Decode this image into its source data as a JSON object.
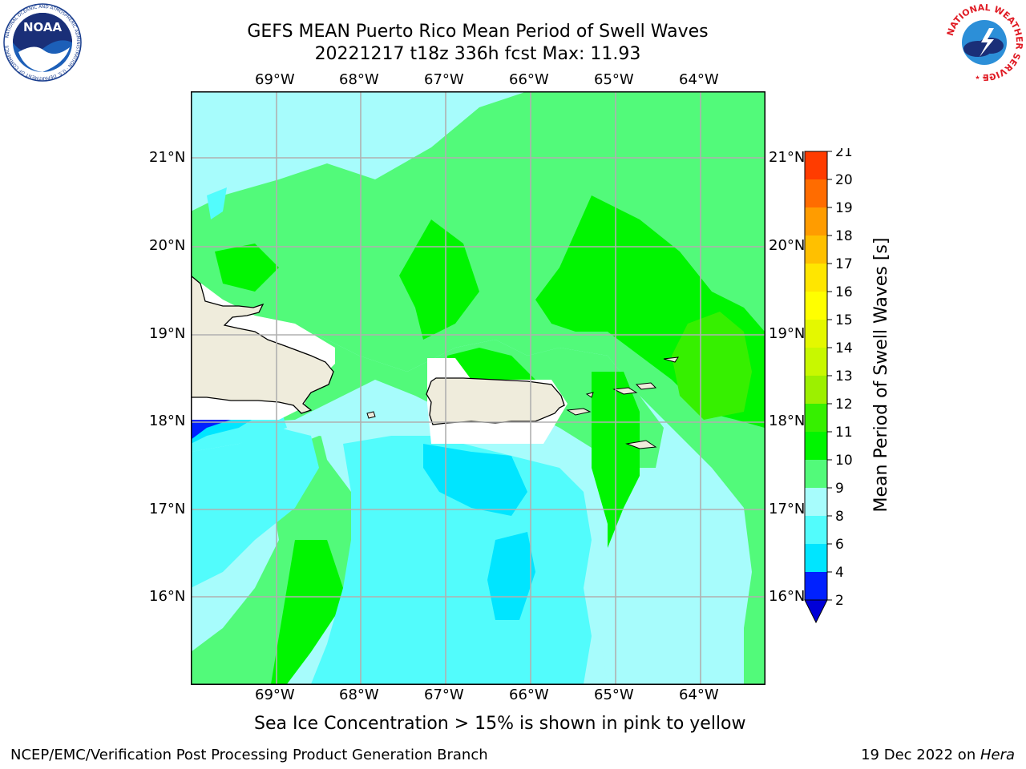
{
  "header": {
    "title_line1": "GEFS MEAN Puerto Rico Mean Period of Swell Waves",
    "title_line2": "20221217 t18z 336h fcst   Max: 11.93"
  },
  "logos": {
    "left": {
      "text": "NOAA",
      "ring_text": "NATIONAL OCEANIC AND ATMOSPHERIC ADMINISTRATION · U.S. DEPARTMENT OF COMMERCE"
    },
    "right": {
      "ring_text": "NATIONAL WEATHER SERVICE"
    }
  },
  "map": {
    "lon_labels": [
      "69°W",
      "68°W",
      "67°W",
      "66°W",
      "65°W",
      "64°W"
    ],
    "lat_labels": [
      "21°N",
      "20°N",
      "19°N",
      "18°N",
      "17°N",
      "16°N"
    ],
    "colors": {
      "land": "#efecdc",
      "coast": "#000000",
      "grid": "#b0b0b0"
    }
  },
  "colorbar": {
    "label": "Mean Period of Swell Waves [s]",
    "ticks": [
      "2",
      "4",
      "6",
      "8",
      "9",
      "10",
      "11",
      "12",
      "13",
      "14",
      "15",
      "16",
      "17",
      "18",
      "19",
      "20",
      "21"
    ],
    "colors": [
      "#0021ff",
      "#00e5ff",
      "#52fcfc",
      "#a7fcfc",
      "#52fa7a",
      "#00f500",
      "#36f000",
      "#9cf000",
      "#c8f800",
      "#e4f800",
      "#ffff00",
      "#ffe600",
      "#ffc000",
      "#ff9c00",
      "#ff6c00",
      "#ff3c00",
      "#ff0000"
    ],
    "under_color": "#0000d8"
  },
  "footer": {
    "note": "Sea Ice Concentration > 15% is shown in pink to yellow",
    "left": "NCEP/EMC/Verification Post Processing Product Generation Branch",
    "right_date": "19 Dec 2022 on ",
    "right_host": "Hera"
  }
}
